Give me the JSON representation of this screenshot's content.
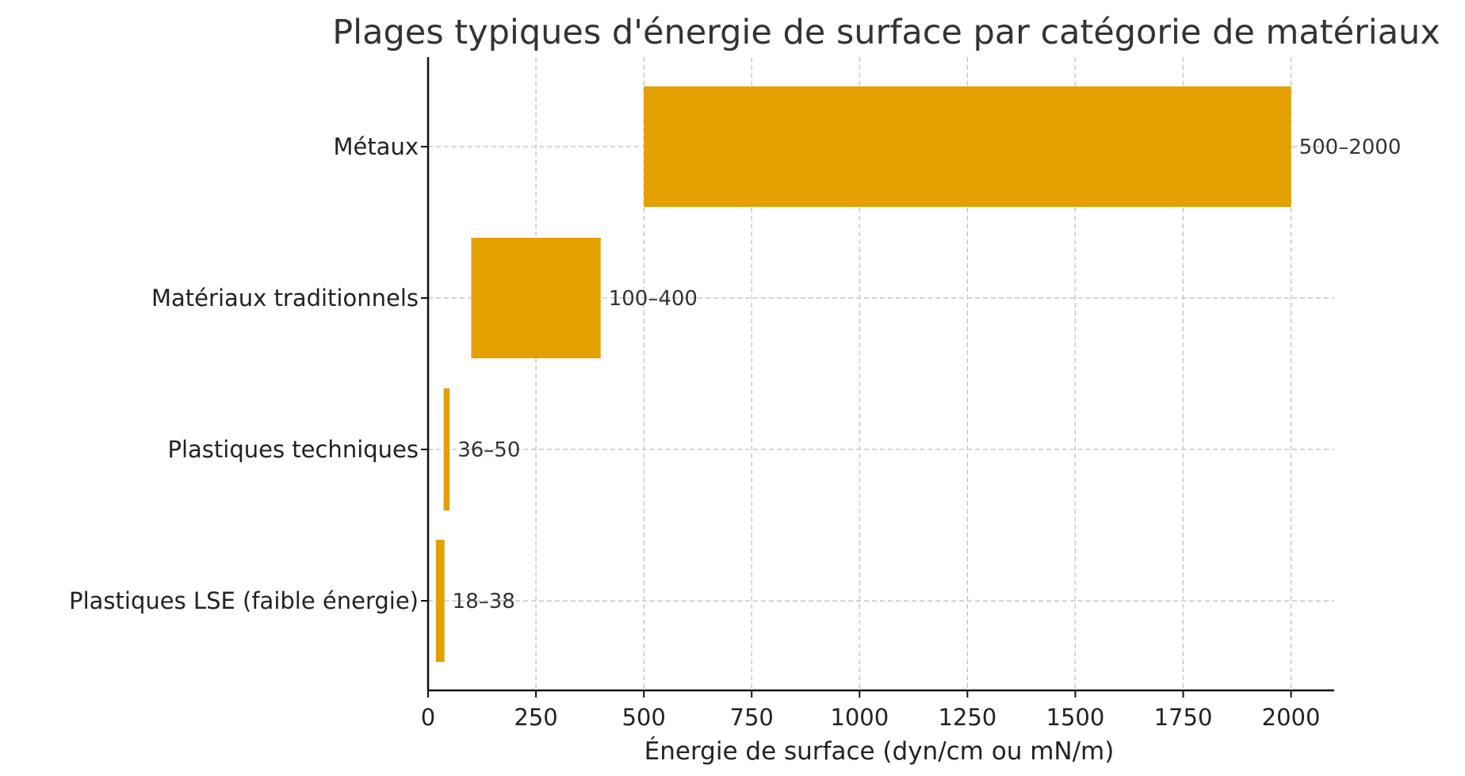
{
  "chart_data": {
    "type": "bar",
    "orientation": "horizontal",
    "bar_style": "floating-range",
    "title": "Plages typiques d'énergie de surface par catégorie de matériaux",
    "xlabel": "Énergie de surface (dyn/cm ou mN/m)",
    "ylabel": "",
    "xlim": [
      0,
      2100
    ],
    "xticks": [
      0,
      250,
      500,
      750,
      1000,
      1250,
      1500,
      1750,
      2000
    ],
    "xtick_labels": [
      "0",
      "250",
      "500",
      "750",
      "1000",
      "1250",
      "1500",
      "1750",
      "2000"
    ],
    "grid": true,
    "grid_style": "dashed",
    "bar_color": "#E3A000",
    "categories": [
      "Métaux",
      "Matériaux traditionnels",
      "Plastiques techniques",
      "Plastiques LSE (faible énergie)"
    ],
    "ranges": [
      {
        "start": 500,
        "end": 2000
      },
      {
        "start": 100,
        "end": 400
      },
      {
        "start": 36,
        "end": 50
      },
      {
        "start": 18,
        "end": 38
      }
    ],
    "data_labels": [
      "500–2000",
      "100–400",
      "36–50",
      "18–38"
    ]
  }
}
